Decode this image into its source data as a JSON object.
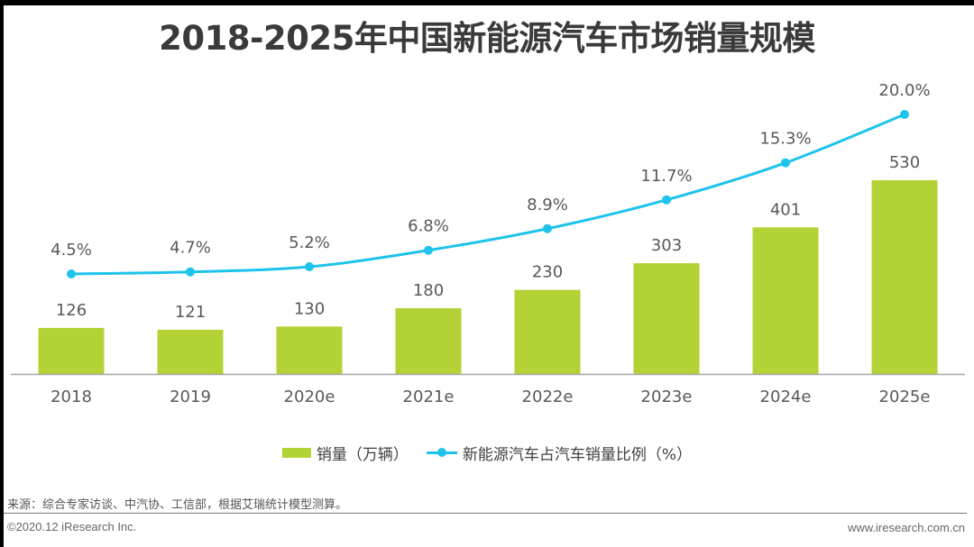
{
  "title": "2018-2025年中国新能源汽车市场销量规模",
  "colors": {
    "bar": "#b2d235",
    "line": "#1ec3ec",
    "axis": "#a6a6a6",
    "text": "#595959"
  },
  "legend": {
    "bar_label": "销量（万辆）",
    "line_label": "新能源汽车占汽车销量比例（%）"
  },
  "footer": {
    "source": "来源：综合专家访谈、中汽协、工信部，根据艾瑞统计模型测算。",
    "copyright": "©2020.12 iResearch Inc.",
    "website": "www.iresearch.com.cn"
  },
  "chart_data": {
    "type": "bar",
    "title": "2018-2025年中国新能源汽车市场销量规模",
    "xlabel": "",
    "ylabel": "",
    "grid": false,
    "legend_position": "bottom",
    "categories": [
      "2018",
      "2019",
      "2020e",
      "2021e",
      "2022e",
      "2023e",
      "2024e",
      "2025e"
    ],
    "series": [
      {
        "name": "销量（万辆）",
        "type": "bar",
        "axis": "left",
        "values": [
          126,
          121,
          130,
          180,
          230,
          303,
          401,
          530
        ],
        "labels": [
          "126",
          "121",
          "130",
          "180",
          "230",
          "303",
          "401",
          "530"
        ]
      },
      {
        "name": "新能源汽车占汽车销量比例（%）",
        "type": "line",
        "axis": "right",
        "values": [
          4.5,
          4.7,
          5.2,
          6.8,
          8.9,
          11.7,
          15.3,
          20.0
        ],
        "labels": [
          "4.5%",
          "4.7%",
          "5.2%",
          "6.8%",
          "8.9%",
          "11.7%",
          "15.3%",
          "20.0%"
        ]
      }
    ],
    "ylim_bar": [
      0,
      530
    ],
    "ylim_line": [
      4.5,
      20.0
    ]
  }
}
